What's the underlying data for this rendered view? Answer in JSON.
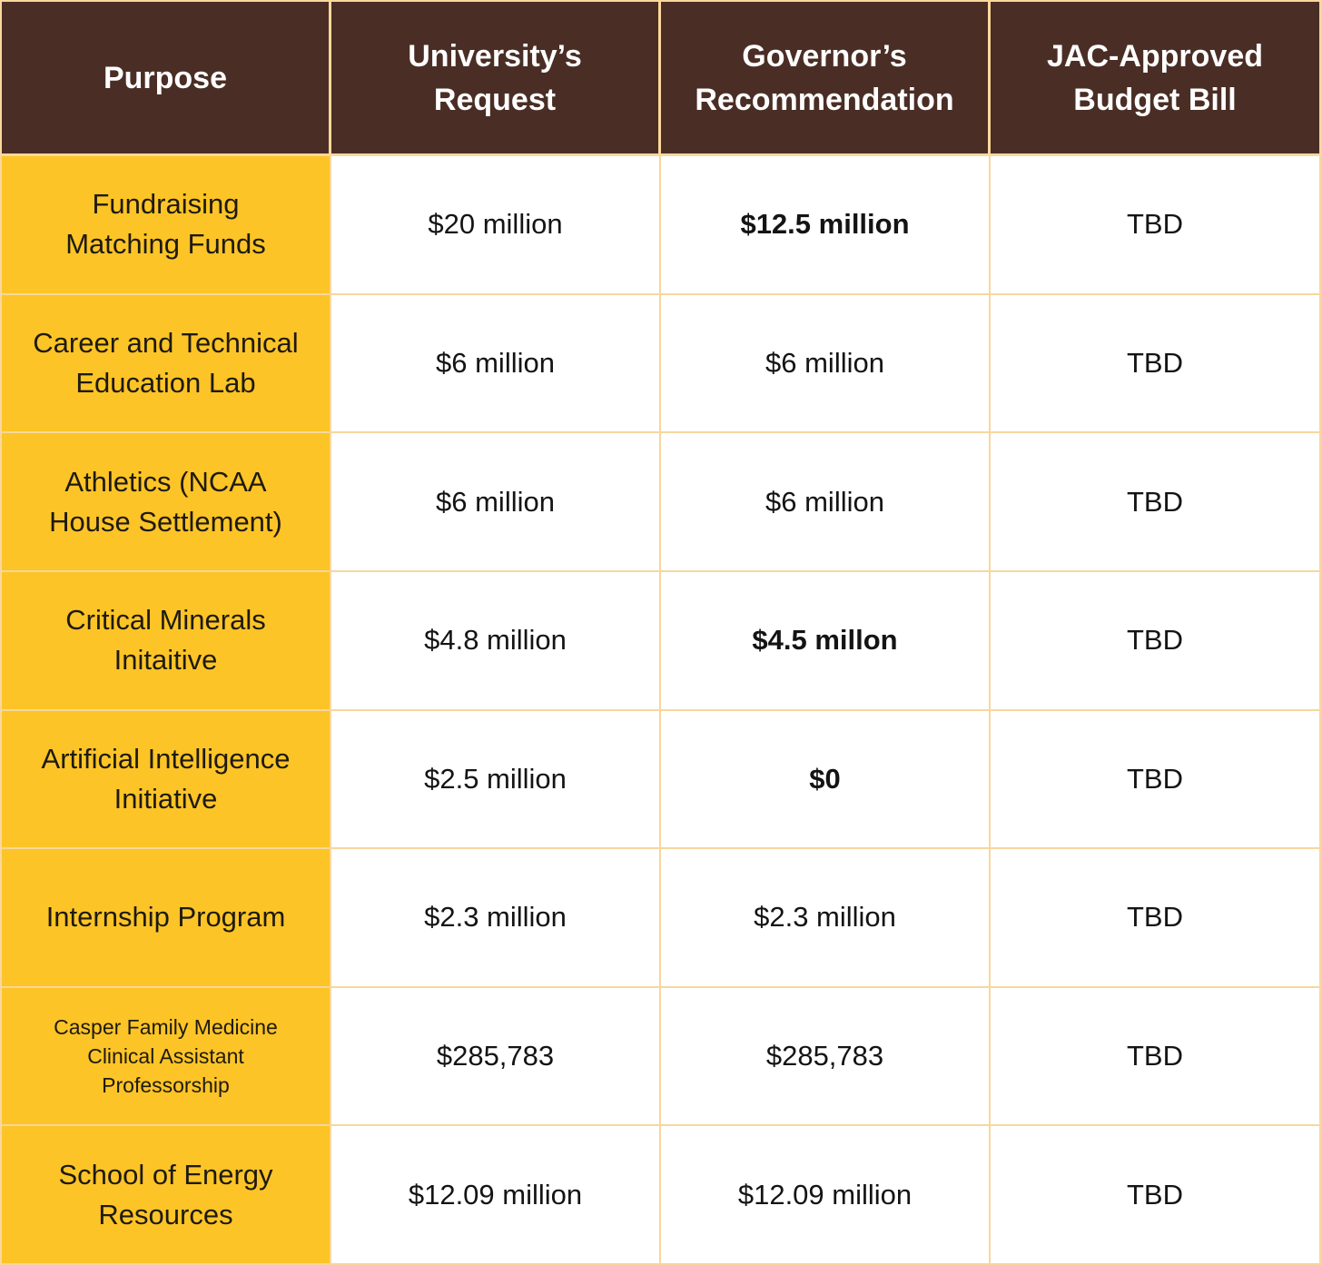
{
  "table": {
    "headers": [
      "Purpose",
      "University’s\nRequest",
      "Governor’s\nRecommendation",
      "JAC-Approved\nBudget Bill"
    ],
    "rows": [
      {
        "purpose": "Fundraising\nMatching Funds",
        "request": "$20 million",
        "recommendation": "$12.5 million",
        "jac": "TBD"
      },
      {
        "purpose": "Career and Technical\nEducation Lab",
        "request": "$6 million",
        "recommendation": "$6 million",
        "jac": "TBD"
      },
      {
        "purpose": "Athletics (NCAA\nHouse Settlement)",
        "request": "$6 million",
        "recommendation": "$6 million",
        "jac": "TBD"
      },
      {
        "purpose": "Critical Minerals\nInitaitive",
        "request": "$4.8 million",
        "recommendation": "$4.5 millon",
        "jac": "TBD"
      },
      {
        "purpose": "Artificial Intelligence\nInitiative",
        "request": "$2.5 million",
        "recommendation": "$0",
        "jac": "TBD"
      },
      {
        "purpose": "Internship Program",
        "request": "$2.3 million",
        "recommendation": "$2.3 million",
        "jac": "TBD"
      },
      {
        "purpose": "Casper Family Medicine\nClinical Assistant\nProfessorship",
        "request": "$285,783",
        "recommendation": "$285,783",
        "jac": "TBD"
      },
      {
        "purpose": "School of Energy\nResources",
        "request": "$12.09 million",
        "recommendation": "$12.09 million",
        "jac": "TBD"
      }
    ]
  }
}
